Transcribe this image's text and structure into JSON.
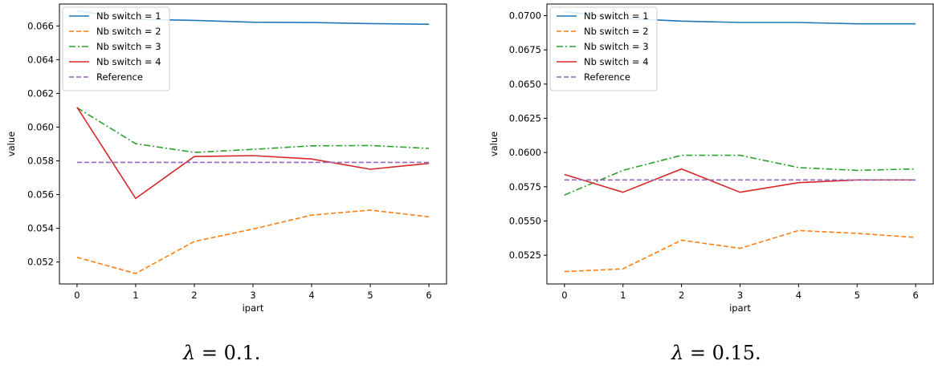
{
  "chart_data": [
    {
      "type": "line",
      "caption_symbol": "λ",
      "caption_rest": " = 0.1.",
      "xlabel": "ipart",
      "ylabel": "value",
      "x": [
        0,
        1,
        2,
        3,
        4,
        5,
        6
      ],
      "xlim": [
        -0.3,
        6.3
      ],
      "ylim": [
        0.0507,
        0.0673
      ],
      "xticks": [
        "0",
        "1",
        "2",
        "3",
        "4",
        "5",
        "6"
      ],
      "yticks": [
        0.052,
        0.054,
        0.056,
        0.058,
        0.06,
        0.062,
        0.064,
        0.066
      ],
      "ytick_labels": [
        "0.052",
        "0.054",
        "0.056",
        "0.058",
        "0.060",
        "0.062",
        "0.064",
        "0.066"
      ],
      "grid": false,
      "legend_position": "upper-left",
      "series": [
        {
          "name": "Nb switch = 1",
          "color": "#1f77b4",
          "dash": "solid",
          "values": [
            0.0669,
            0.0664,
            0.06633,
            0.06622,
            0.0662,
            0.06614,
            0.0661
          ]
        },
        {
          "name": "Nb switch = 2",
          "color": "#ff7f0e",
          "dash": "dashed",
          "values": [
            0.05228,
            0.05132,
            0.05322,
            0.05396,
            0.05478,
            0.05508,
            0.05468
          ]
        },
        {
          "name": "Nb switch = 3",
          "color": "#2ca02c",
          "dash": "dashdot",
          "values": [
            0.06115,
            0.05902,
            0.0585,
            0.05868,
            0.05889,
            0.05891,
            0.05874
          ]
        },
        {
          "name": "Nb switch = 4",
          "color": "#d62728",
          "dash": "solid",
          "values": [
            0.06118,
            0.05577,
            0.05826,
            0.05831,
            0.05811,
            0.0575,
            0.05785
          ]
        },
        {
          "name": "Reference",
          "color": "#9467bd",
          "dash": "dashed",
          "values": [
            0.05791,
            0.05791,
            0.05791,
            0.05791,
            0.05791,
            0.05791,
            0.05791
          ]
        }
      ]
    },
    {
      "type": "line",
      "caption_symbol": "λ",
      "caption_rest": " = 0.15.",
      "xlabel": "ipart",
      "ylabel": "value",
      "x": [
        0,
        1,
        2,
        3,
        4,
        5,
        6
      ],
      "xlim": [
        -0.3,
        6.3
      ],
      "ylim": [
        0.0504,
        0.07085
      ],
      "xticks": [
        "0",
        "1",
        "2",
        "3",
        "4",
        "5",
        "6"
      ],
      "yticks": [
        0.0525,
        0.055,
        0.0575,
        0.06,
        0.0625,
        0.065,
        0.0675,
        0.07
      ],
      "ytick_labels": [
        "0.0525",
        "0.0550",
        "0.0575",
        "0.0600",
        "0.0625",
        "0.0650",
        "0.0675",
        "0.0700"
      ],
      "grid": false,
      "legend_position": "upper-left",
      "series": [
        {
          "name": "Nb switch = 1",
          "color": "#1f77b4",
          "dash": "solid",
          "values": [
            0.0703,
            0.0698,
            0.0696,
            0.0695,
            0.0695,
            0.0694,
            0.0694
          ]
        },
        {
          "name": "Nb switch = 2",
          "color": "#ff7f0e",
          "dash": "dashed",
          "values": [
            0.0513,
            0.0515,
            0.0536,
            0.053,
            0.0543,
            0.0541,
            0.0538
          ]
        },
        {
          "name": "Nb switch = 3",
          "color": "#2ca02c",
          "dash": "dashdot",
          "values": [
            0.0569,
            0.0587,
            0.0598,
            0.0598,
            0.0589,
            0.0587,
            0.0588
          ]
        },
        {
          "name": "Nb switch = 4",
          "color": "#d62728",
          "dash": "solid",
          "values": [
            0.0584,
            0.0571,
            0.0588,
            0.0571,
            0.0578,
            0.058,
            0.058
          ]
        },
        {
          "name": "Reference",
          "color": "#9467bd",
          "dash": "dashed",
          "values": [
            0.058,
            0.058,
            0.058,
            0.058,
            0.058,
            0.058,
            0.058
          ]
        }
      ]
    }
  ]
}
